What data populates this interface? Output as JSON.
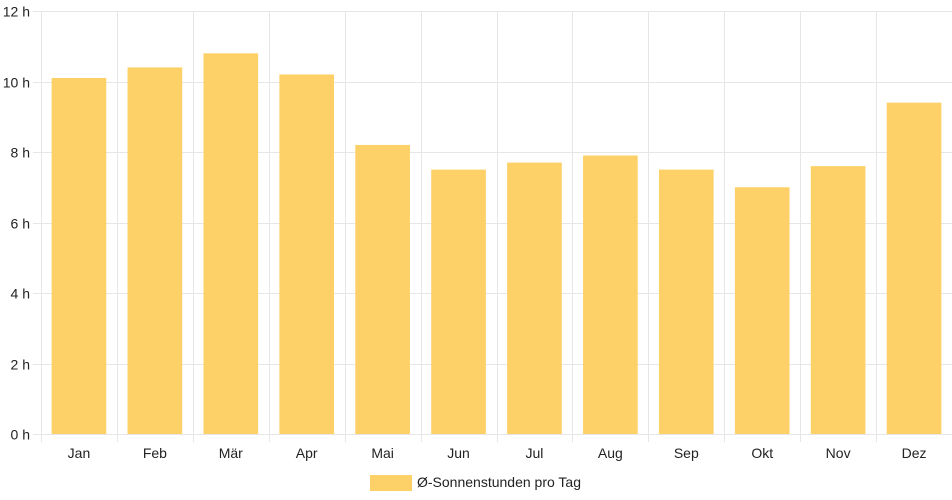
{
  "chart_data": {
    "type": "bar",
    "categories": [
      "Jan",
      "Feb",
      "Mär",
      "Apr",
      "Mai",
      "Jun",
      "Jul",
      "Aug",
      "Sep",
      "Okt",
      "Nov",
      "Dez"
    ],
    "series": [
      {
        "name": "Ø-Sonnenstunden pro Tag",
        "values": [
          10.1,
          10.4,
          10.8,
          10.2,
          8.2,
          7.5,
          7.7,
          7.9,
          7.5,
          7.0,
          7.6,
          9.4
        ],
        "color": "#fdd168"
      }
    ],
    "y_ticks": [
      "0 h",
      "2 h",
      "4 h",
      "6 h",
      "8 h",
      "10 h",
      "12 h"
    ],
    "ylim": [
      0,
      12
    ],
    "ytick_step": 2,
    "grid": true,
    "grid_color": "#e6e6e6",
    "legend": {
      "position": "bottom",
      "label": "Ø-Sonnenstunden pro Tag",
      "swatch_color": "#fdd168"
    }
  }
}
